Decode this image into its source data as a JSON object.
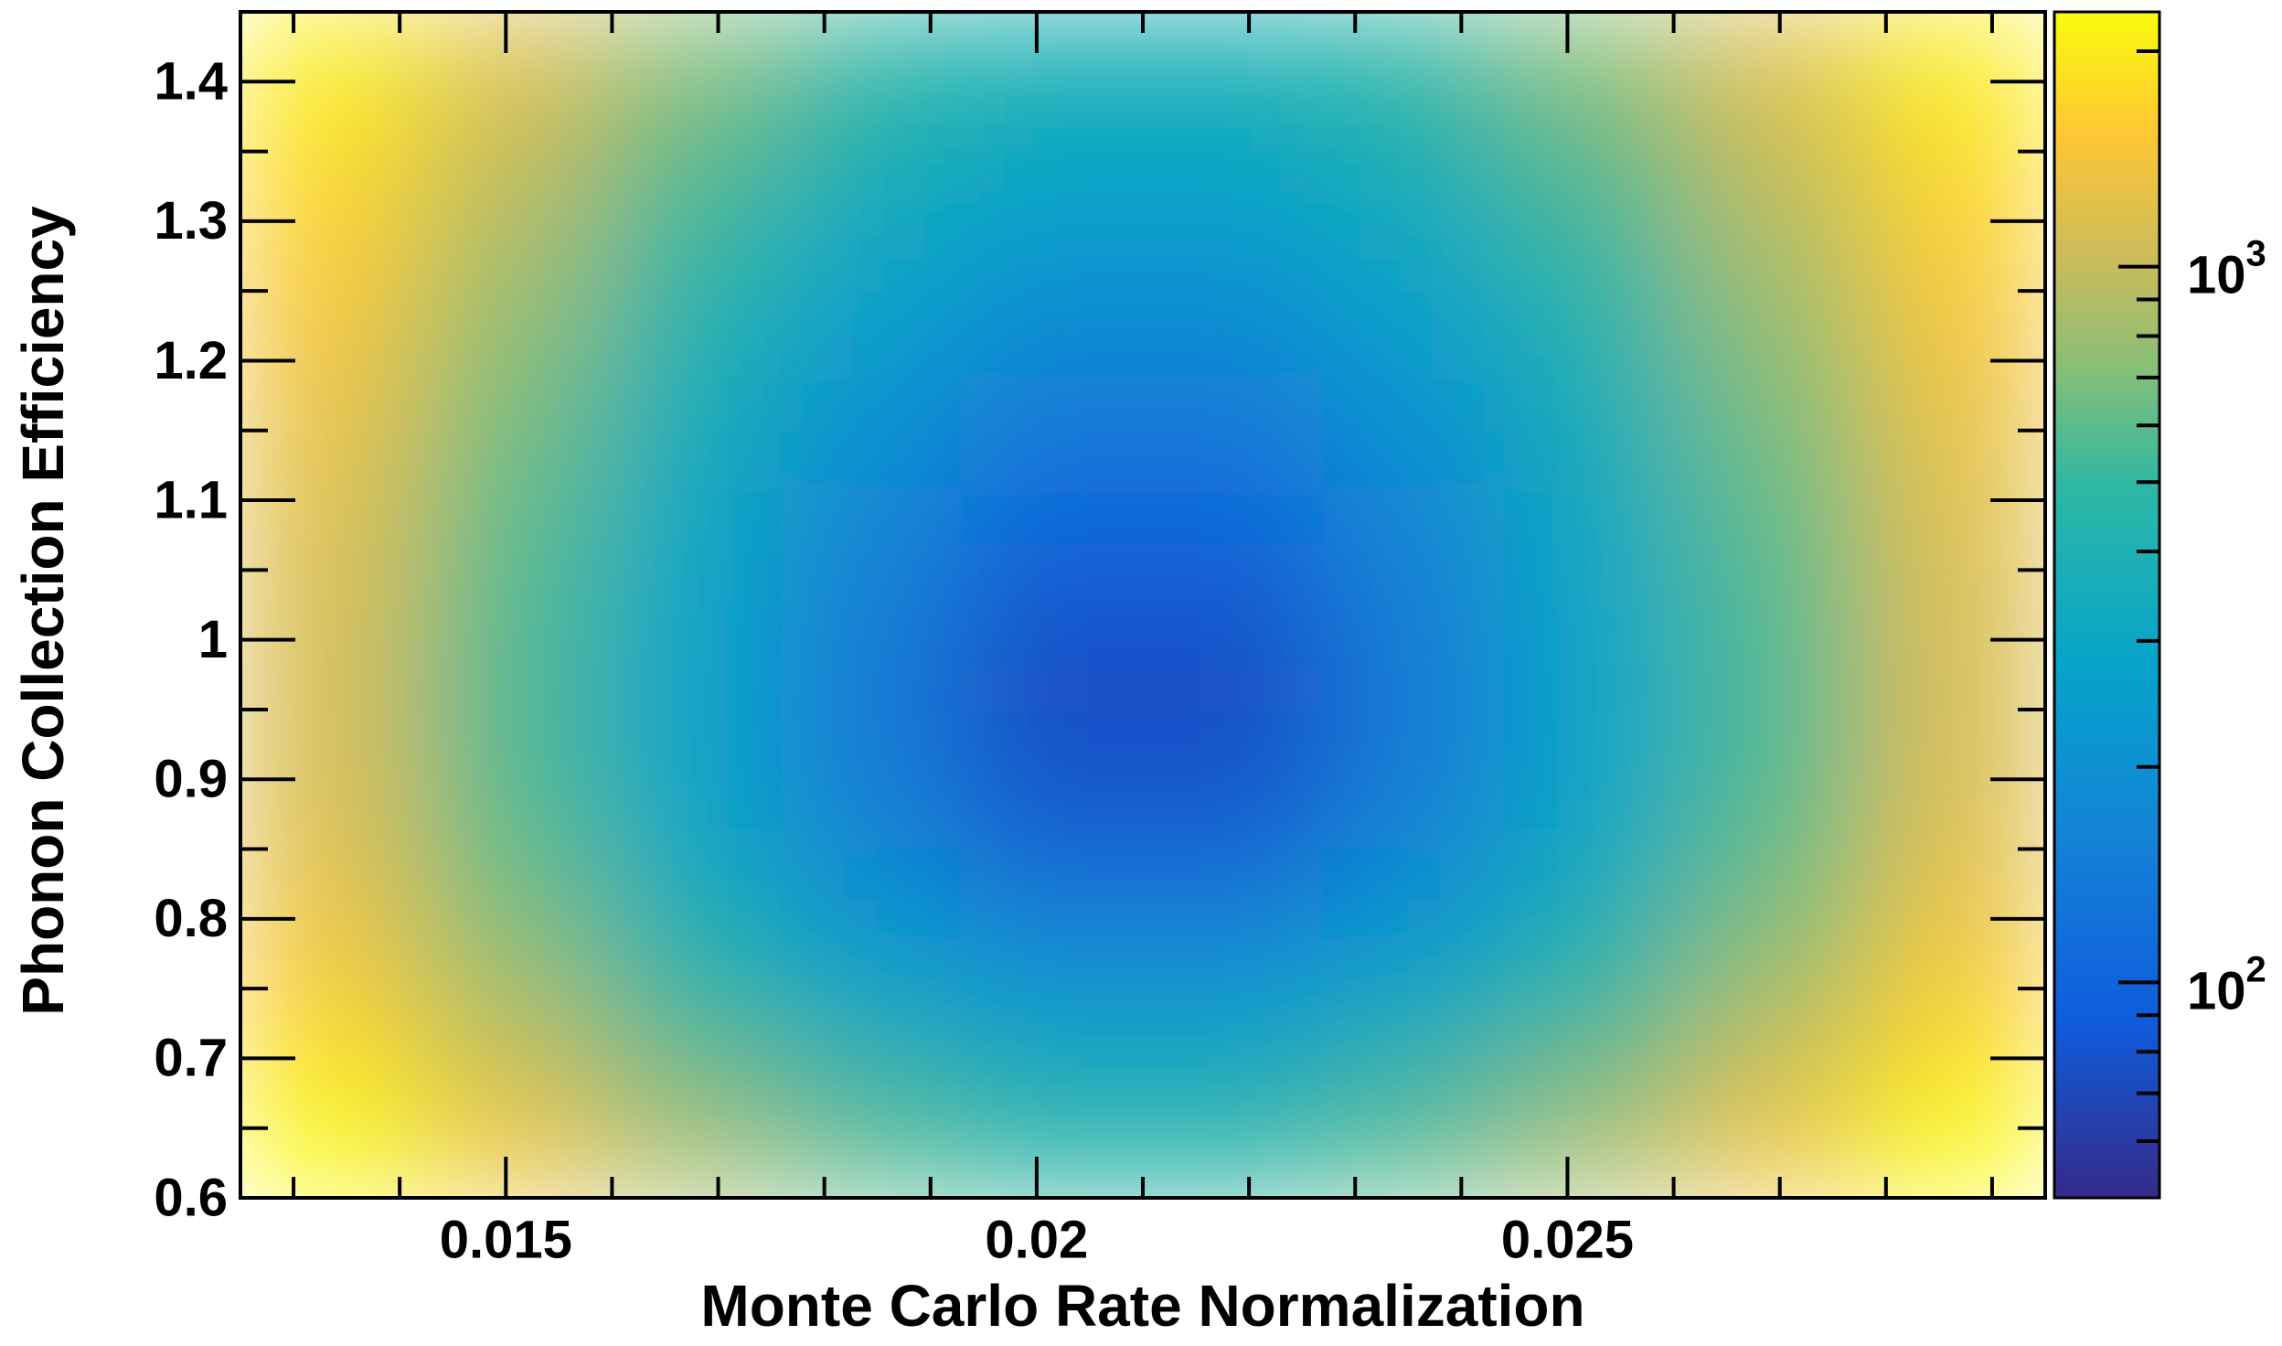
{
  "chart_data": {
    "type": "heatmap",
    "x_label": "Monte Carlo Rate Normalization",
    "y_label": "Phonon Collection Efficiency",
    "xlim": [
      0.0125,
      0.0295
    ],
    "ylim": [
      0.6,
      1.45
    ],
    "xticks": [
      0.015,
      0.02,
      0.025
    ],
    "xminorticks": [
      0.013,
      0.014,
      0.016,
      0.017,
      0.018,
      0.019,
      0.021,
      0.022,
      0.023,
      0.024,
      0.026,
      0.027,
      0.028,
      0.029
    ],
    "yticks": [
      0.6,
      0.7,
      0.8,
      0.9,
      1,
      1.1,
      1.2,
      1.3,
      1.4
    ],
    "yminorticks": [
      0.65,
      0.75,
      0.85,
      0.95,
      1.05,
      1.15,
      1.25,
      1.35,
      1.45
    ],
    "x": [
      0.01335,
      0.01505,
      0.01675,
      0.01845,
      0.02015,
      0.02185,
      0.02355,
      0.02525,
      0.02695,
      0.02865
    ],
    "y": [
      0.6425,
      0.7275,
      0.8125,
      0.8975,
      0.9825,
      1.0675,
      1.1525,
      1.2375,
      1.3225,
      1.4075
    ],
    "z": [
      [
        2320,
        1360,
        850,
        594,
        486,
        486,
        594,
        850,
        1360,
        2320
      ],
      [
        1650,
        906,
        525,
        335,
        256,
        256,
        335,
        525,
        906,
        1650
      ],
      [
        1290,
        671,
        358,
        203,
        136,
        136,
        203,
        358,
        671,
        1290
      ],
      [
        1140,
        573,
        289,
        147,
        79,
        79,
        147,
        289,
        573,
        1140
      ],
      [
        1130,
        569,
        286,
        144,
        75,
        75,
        144,
        286,
        569,
        1130
      ],
      [
        1180,
        601,
        309,
        164,
        98,
        98,
        164,
        309,
        601,
        1180
      ],
      [
        1290,
        671,
        358,
        203,
        136,
        136,
        203,
        358,
        671,
        1290
      ],
      [
        1460,
        783,
        437,
        266,
        194,
        194,
        266,
        437,
        783,
        1460
      ],
      [
        1710,
        948,
        555,
        358,
        276,
        276,
        358,
        555,
        948,
        1710
      ],
      [
        2070,
        1190,
        726,
        494,
        397,
        397,
        494,
        726,
        1190,
        2070
      ]
    ],
    "zlim": [
      50,
      2270
    ],
    "zlog": true,
    "zticks": [
      {
        "value": 100,
        "label": "10",
        "exponent": "2"
      },
      {
        "value": 1000,
        "label": "10",
        "exponent": "3"
      }
    ],
    "zminorticks": [
      60,
      70,
      80,
      90,
      200,
      300,
      400,
      500,
      600,
      700,
      800,
      900,
      2000
    ]
  }
}
